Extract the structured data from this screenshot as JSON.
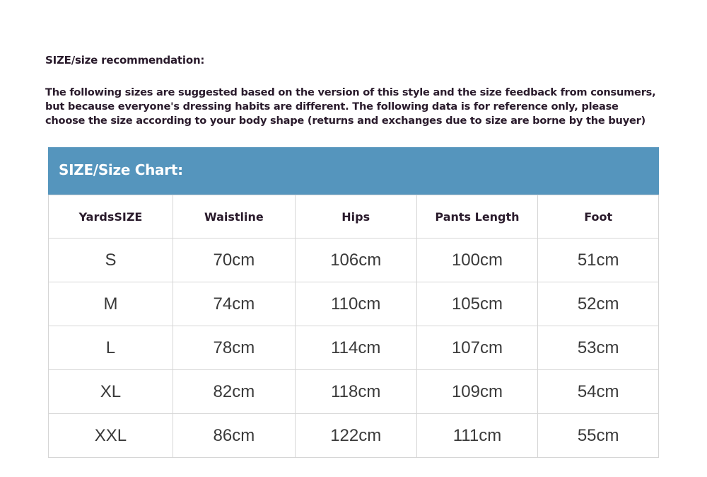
{
  "title": "SIZE/size recommendation:",
  "description": [
    "The following sizes are suggested based on the version of this style and the size feedback from consumers,",
    "but because everyone's dressing habits are different. The following data is for reference only, please",
    "choose the size according to your body shape (returns and exchanges due to size are borne by the buyer)"
  ],
  "chart_title": "SIZE/Size Chart:",
  "header_color": "#5595bd",
  "columns": [
    "YardsSIZE",
    "Waistline",
    "Hips",
    "Pants Length",
    "Foot"
  ],
  "rows": [
    [
      "S",
      "70cm",
      "106cm",
      "100cm",
      "51cm"
    ],
    [
      "M",
      "74cm",
      "110cm",
      "105cm",
      "52cm"
    ],
    [
      "L",
      "78cm",
      "114cm",
      "107cm",
      "53cm"
    ],
    [
      "XL",
      "82cm",
      "118cm",
      "109cm",
      "54cm"
    ],
    [
      "XXL",
      "86cm",
      "122cm",
      "111cm",
      "55cm"
    ]
  ]
}
